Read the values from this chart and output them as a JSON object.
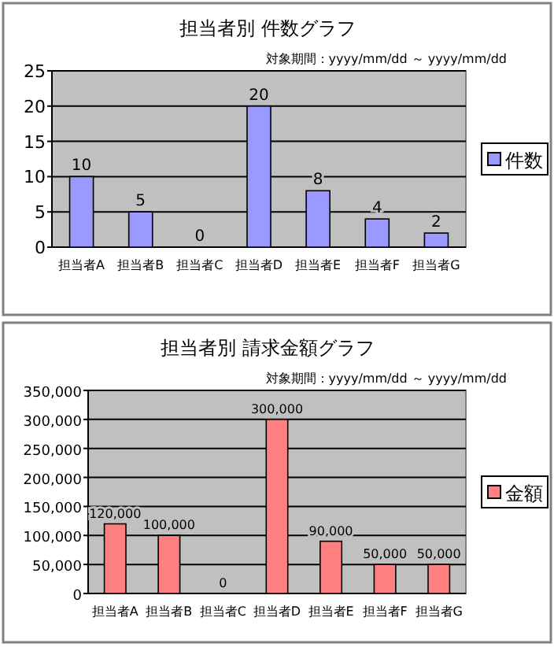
{
  "chart_data": [
    {
      "type": "bar",
      "title": "担当者別  件数グラフ",
      "subtitle": "対象期間：yyyy/mm/dd ～ yyyy/mm/dd",
      "categories": [
        "担当者A",
        "担当者B",
        "担当者C",
        "担当者D",
        "担当者E",
        "担当者F",
        "担当者G"
      ],
      "series": [
        {
          "name": "件数",
          "color": "#9999ff",
          "values": [
            10,
            5,
            0,
            20,
            8,
            4,
            2
          ]
        }
      ],
      "ylim": [
        0,
        25
      ],
      "yticks": [
        0,
        5,
        10,
        15,
        20,
        25
      ],
      "grid": "y",
      "legend": "right",
      "data_labels": true
    },
    {
      "type": "bar",
      "title": "担当者別  請求金額グラフ",
      "subtitle": "対象期間：yyyy/mm/dd ～ yyyy/mm/dd",
      "categories": [
        "担当者A",
        "担当者B",
        "担当者C",
        "担当者D",
        "担当者E",
        "担当者F",
        "担当者G"
      ],
      "series": [
        {
          "name": "金額",
          "color": "#ff8080",
          "values": [
            120000,
            100000,
            0,
            300000,
            90000,
            50000,
            50000
          ],
          "value_labels": [
            "120,000",
            "100,000",
            "0",
            "300,000",
            "90,000",
            "50,000",
            "50,000"
          ]
        }
      ],
      "ylim": [
        0,
        350000
      ],
      "yticks": [
        {
          "value": 0,
          "label": "0"
        },
        {
          "value": 50000,
          "label": "50,000"
        },
        {
          "value": 100000,
          "label": "100,000"
        },
        {
          "value": 150000,
          "label": "150,000"
        },
        {
          "value": 200000,
          "label": "200,000"
        },
        {
          "value": 250000,
          "label": "250,000"
        },
        {
          "value": 300000,
          "label": "300,000"
        },
        {
          "value": 350000,
          "label": "350,000"
        }
      ],
      "grid": "y",
      "legend": "right"
    }
  ]
}
